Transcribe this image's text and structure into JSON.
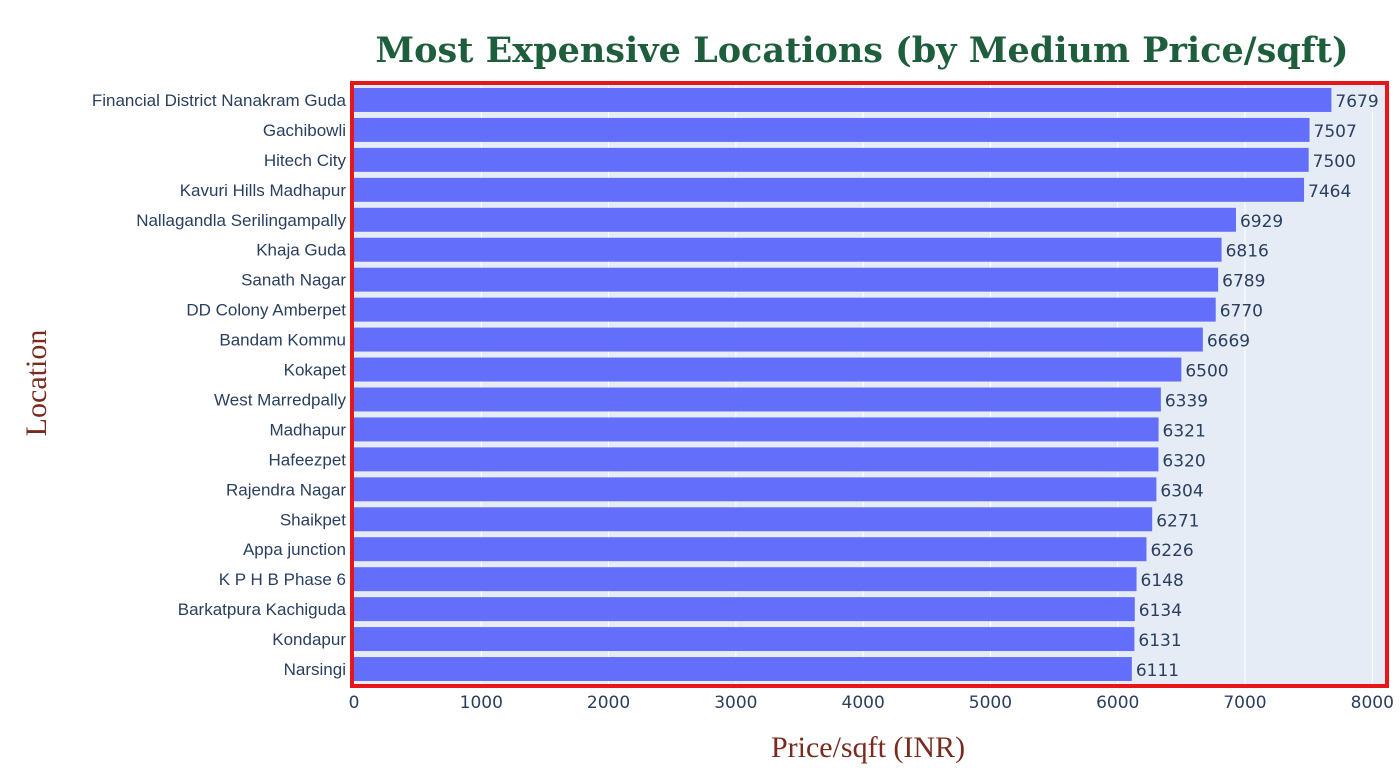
{
  "chart_data": {
    "type": "bar",
    "orientation": "horizontal",
    "title": "Most Expensive Locations (by Medium Price/sqft)",
    "xlabel": "Price/sqft (INR)",
    "ylabel": "Location",
    "xlim": [
      0,
      8100
    ],
    "xticks": [
      0,
      1000,
      2000,
      3000,
      4000,
      5000,
      6000,
      7000,
      8000
    ],
    "grid": true,
    "categories": [
      "Financial District Nanakram Guda",
      "Gachibowli",
      "Hitech City",
      "Kavuri Hills Madhapur",
      "Nallagandla Serilingampally",
      "Khaja Guda",
      "Sanath Nagar",
      "DD Colony Amberpet",
      "Bandam Kommu",
      "Kokapet",
      "West Marredpally",
      "Madhapur",
      "Hafeezpet",
      "Rajendra Nagar",
      "Shaikpet",
      "Appa junction",
      "K P H B Phase 6",
      "Barkatpura Kachiguda",
      "Kondapur",
      "Narsingi"
    ],
    "values": [
      7679,
      7507,
      7500,
      7464,
      6929,
      6816,
      6789,
      6770,
      6669,
      6500,
      6339,
      6321,
      6320,
      6304,
      6271,
      6226,
      6148,
      6134,
      6131,
      6111
    ],
    "bar_color": "#636efa",
    "plot_bg": "#e5ecf6",
    "frame_color": "#e8161b",
    "title_color": "#1f5e3d",
    "axis_title_color": "#7a2a1e"
  }
}
